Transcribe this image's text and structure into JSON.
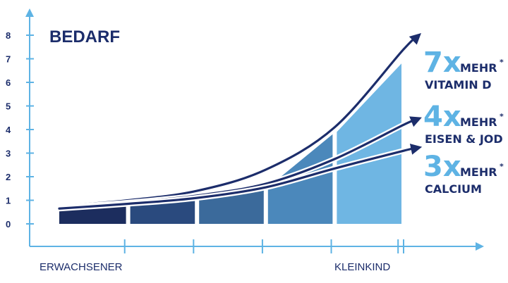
{
  "chart_data": {
    "type": "area",
    "title": "BEDARF",
    "xlabel": "",
    "ylabel": "",
    "ylim": [
      0,
      8
    ],
    "yticks": [
      0,
      1,
      2,
      3,
      4,
      5,
      6,
      7,
      8
    ],
    "x_range": [
      0,
      5
    ],
    "categories": [
      "ERWACHSENER",
      "KLEINKIND"
    ],
    "bands": [
      {
        "x": [
          0,
          1
        ],
        "fill": "#1c2d5e",
        "top": [
          0.55,
          0.75
        ]
      },
      {
        "x": [
          1,
          2
        ],
        "fill": "#2a4a7e",
        "top": [
          0.8,
          1.07
        ]
      },
      {
        "x": [
          2,
          3
        ],
        "fill": "#3b6a9b",
        "top": [
          1.12,
          1.5
        ]
      },
      {
        "x": [
          3,
          4
        ],
        "fill": "#4b88bb",
        "top": [
          1.55,
          3.8
        ]
      },
      {
        "x": [
          4,
          5
        ],
        "fill": "#6fb6e3",
        "top": [
          3.9,
          6.8
        ]
      }
    ],
    "series": [
      {
        "values": [
          [
            0,
            0.75
          ],
          [
            1,
            1.0
          ],
          [
            2,
            1.4
          ],
          [
            3,
            2.3
          ],
          [
            4,
            4.1
          ],
          [
            5,
            7.4
          ]
        ]
      },
      {
        "values": [
          [
            0,
            0.7
          ],
          [
            1,
            0.9
          ],
          [
            2,
            1.2
          ],
          [
            3,
            1.7
          ],
          [
            4,
            2.75
          ],
          [
            5,
            4.2
          ]
        ]
      },
      {
        "values": [
          [
            0,
            0.65
          ],
          [
            1,
            0.85
          ],
          [
            2,
            1.1
          ],
          [
            3,
            1.55
          ],
          [
            4,
            2.35
          ],
          [
            5,
            3.1
          ]
        ]
      }
    ],
    "annotations": [
      {
        "number": "7x",
        "mehr": "MEHR",
        "star": "*",
        "label": "VITAMIN D"
      },
      {
        "number": "4x",
        "mehr": "MEHR",
        "star": "*",
        "label": "EISEN & JOD"
      },
      {
        "number": "3x",
        "mehr": "MEHR",
        "star": "*",
        "label": "CALCIUM"
      }
    ],
    "colors": {
      "axis": "#5eb3e4",
      "text_dark": "#1c2d6b",
      "arrow": "#1c2d6b",
      "accent": "#5eb3e4"
    }
  }
}
